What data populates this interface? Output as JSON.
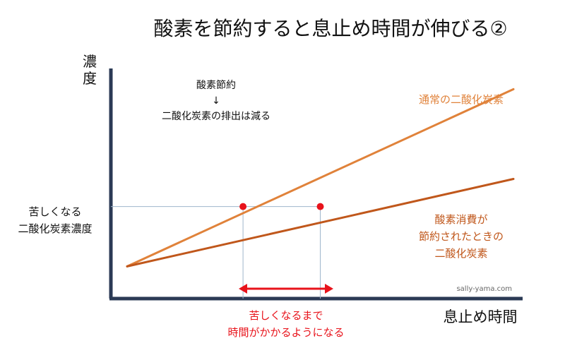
{
  "chart_data": {
    "type": "line",
    "title": "酸素を節約すると息止め時間が伸びる②",
    "ylabel": "濃度",
    "xlabel": "息止め時間",
    "threshold": {
      "label_lines": [
        "苦しくなる",
        "二酸化炭素濃度"
      ],
      "value": 0.4
    },
    "xlim": [
      0,
      1
    ],
    "ylim": [
      0,
      1
    ],
    "series": [
      {
        "name": "通常の二酸化炭素",
        "color": "#e0823a",
        "x": [
          0,
          1
        ],
        "y": [
          0.14,
          0.91
        ]
      },
      {
        "name_lines": [
          "酸素消費が",
          "節約されたときの",
          "二酸化炭素"
        ],
        "color": "#c0571b",
        "x": [
          0,
          1
        ],
        "y": [
          0.14,
          0.52
        ]
      }
    ],
    "points": [
      {
        "x": 0.3,
        "y": 0.4,
        "color": "#e8131b"
      },
      {
        "x": 0.5,
        "y": 0.4,
        "color": "#e8131b"
      }
    ],
    "annotations": {
      "top_lines": [
        "酸素節約",
        "↓",
        "二酸化炭素の排出は減る"
      ],
      "bottom_lines": [
        "苦しくなるまで",
        "時間がかかるようになる"
      ],
      "arrow_color": "#e8131b"
    },
    "watermark": "sally-yama.com"
  }
}
